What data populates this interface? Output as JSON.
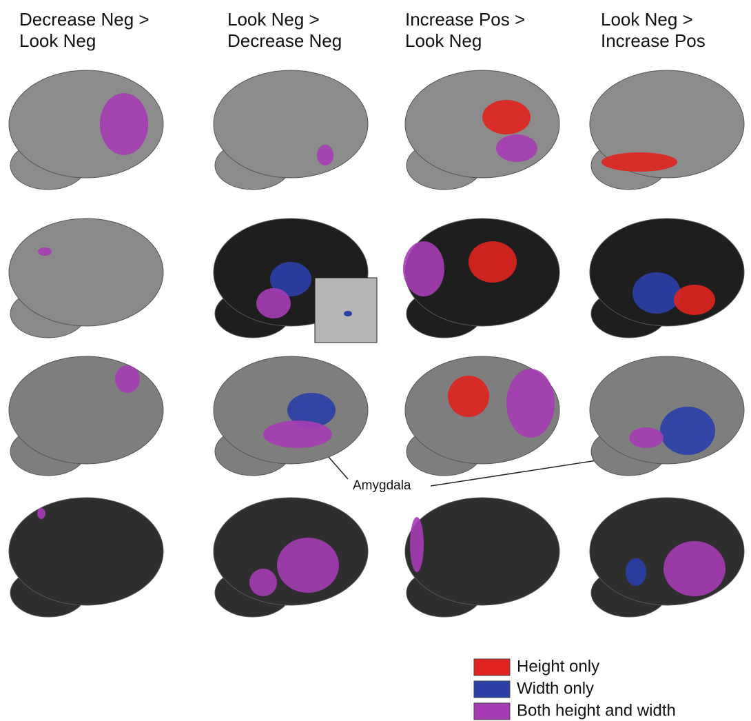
{
  "columns": [
    [
      "Decrease Neg >",
      "Look Neg"
    ],
    [
      "Look Neg >",
      "Decrease Neg"
    ],
    [
      "Increase Pos >",
      "Look Neg"
    ],
    [
      "Look Neg >",
      "Increase Pos"
    ]
  ],
  "annotation": "Amygdala",
  "legend": [
    {
      "label": "Height only",
      "color": "#e0241f"
    },
    {
      "label": "Width only",
      "color": "#2a3fa8"
    },
    {
      "label": "Both height and width",
      "color": "#a53cb4"
    }
  ]
}
